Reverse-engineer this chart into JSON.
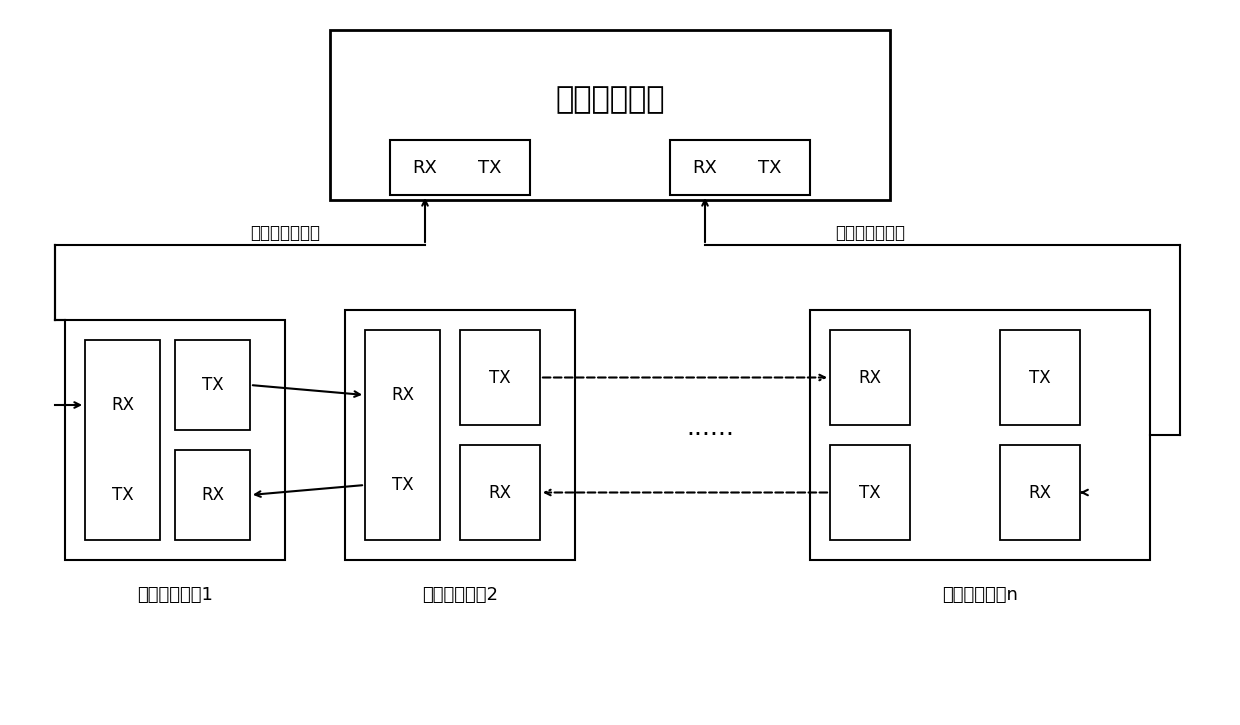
{
  "title": "监控中心主站",
  "label_port1": "第一光通信端口",
  "label_port2": "第二光通信端口",
  "label_sub1": "远程受控子站1",
  "label_sub2": "远程受控子站2",
  "label_subn": "远程受控子站n",
  "label_dots": "······",
  "bg_color": "#ffffff"
}
